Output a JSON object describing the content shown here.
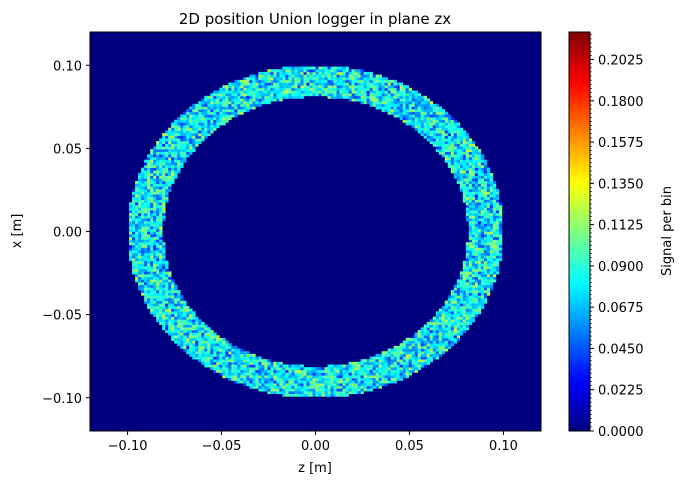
{
  "chart_data": {
    "type": "heatmap",
    "title": "2D position Union logger in plane zx",
    "xlabel": "z [m]",
    "ylabel": "x [m]",
    "xlim": [
      -0.12,
      0.12
    ],
    "ylim": [
      -0.12,
      0.12
    ],
    "xticks": [
      -0.1,
      -0.05,
      0.0,
      0.05,
      0.1
    ],
    "xtick_labels": [
      "−0.10",
      "−0.05",
      "0.00",
      "0.05",
      "0.10"
    ],
    "yticks": [
      -0.1,
      -0.05,
      0.0,
      0.05,
      0.1
    ],
    "ytick_labels": [
      "−0.10",
      "−0.05",
      "0.00",
      "0.05",
      "0.10"
    ],
    "colormap": "jet",
    "background_color": "#00007f",
    "ring": {
      "center": [
        0.0,
        0.0
      ],
      "inner_radius": 0.081,
      "outer_radius": 0.1,
      "typical_signal": 0.07,
      "signal_range": [
        0.03,
        0.13
      ]
    },
    "colorbar": {
      "label": "Signal per bin",
      "min": 0.0,
      "max": 0.2175,
      "ticks": [
        0.0,
        0.0225,
        0.045,
        0.0675,
        0.09,
        0.1125,
        0.135,
        0.1575,
        0.18,
        0.2025
      ],
      "tick_labels": [
        "0.0000",
        "0.0225",
        "0.0450",
        "0.0675",
        "0.0900",
        "0.1125",
        "0.1350",
        "0.1575",
        "0.1800",
        "0.2025"
      ]
    },
    "grid": false
  }
}
